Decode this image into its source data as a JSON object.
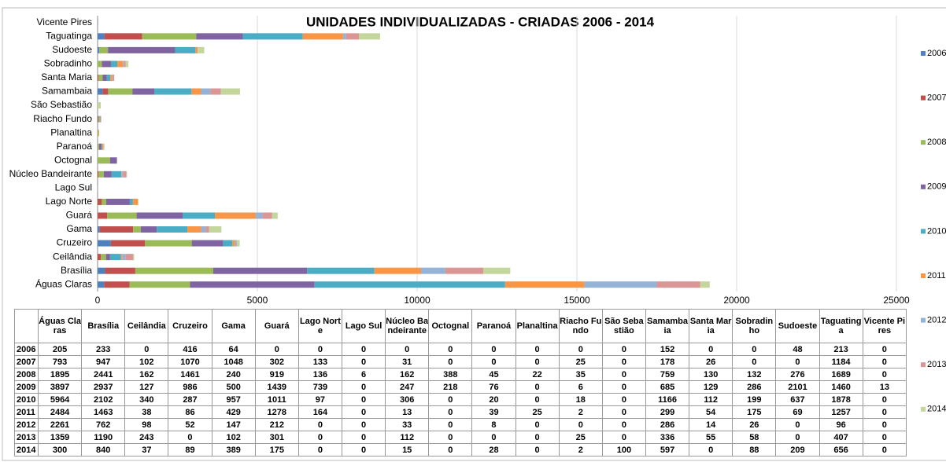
{
  "chart_data": {
    "type": "stacked_bar_horizontal",
    "title": "UNIDADES INDIVIDUALIZADAS - CRIADAS 2006 - 2014",
    "categories": [
      "Águas Claras",
      "Brasília",
      "Ceilândia",
      "Cruzeiro",
      "Gama",
      "Guará",
      "Lago Norte",
      "Lago Sul",
      "Núcleo Bandeirante",
      "Octognal",
      "Paranoá",
      "Planaltina",
      "Riacho Fundo",
      "São Sebastião",
      "Samambaia",
      "Santa Maria",
      "Sobradinho",
      "Sudoeste",
      "Taguatinga",
      "Vicente Pires"
    ],
    "xlim": [
      0,
      25000
    ],
    "xticks": [
      0,
      5000,
      10000,
      15000,
      20000,
      25000
    ],
    "grid": true,
    "legend": "right",
    "series": [
      {
        "name": "2006",
        "color": "#4f81bd",
        "values": [
          205,
          233,
          0,
          416,
          64,
          0,
          0,
          0,
          0,
          0,
          0,
          0,
          0,
          0,
          152,
          0,
          0,
          48,
          213,
          0
        ]
      },
      {
        "name": "2007",
        "color": "#c0504d",
        "values": [
          793,
          947,
          102,
          1070,
          1048,
          302,
          133,
          0,
          31,
          0,
          0,
          0,
          25,
          0,
          178,
          26,
          0,
          0,
          1184,
          0
        ]
      },
      {
        "name": "2008",
        "color": "#9bbb59",
        "values": [
          1895,
          2441,
          162,
          1461,
          240,
          919,
          136,
          6,
          162,
          388,
          45,
          22,
          35,
          0,
          759,
          130,
          132,
          276,
          1689,
          0
        ]
      },
      {
        "name": "2009",
        "color": "#8064a2",
        "values": [
          3897,
          2937,
          127,
          986,
          500,
          1439,
          739,
          0,
          247,
          218,
          76,
          0,
          6,
          0,
          685,
          129,
          286,
          2101,
          1460,
          13
        ]
      },
      {
        "name": "2010",
        "color": "#4bacc6",
        "values": [
          5964,
          2102,
          340,
          287,
          957,
          1011,
          97,
          0,
          306,
          0,
          20,
          0,
          18,
          0,
          1166,
          112,
          199,
          637,
          1878,
          0
        ]
      },
      {
        "name": "2011",
        "color": "#f79646",
        "values": [
          2484,
          1463,
          38,
          86,
          429,
          1278,
          164,
          0,
          13,
          0,
          39,
          25,
          2,
          0,
          299,
          54,
          175,
          69,
          1257,
          0
        ]
      },
      {
        "name": "2012",
        "color": "#95b3d7",
        "values": [
          2261,
          762,
          98,
          52,
          147,
          212,
          0,
          0,
          33,
          0,
          8,
          0,
          0,
          0,
          286,
          14,
          26,
          0,
          96,
          0
        ]
      },
      {
        "name": "2013",
        "color": "#d99694",
        "values": [
          1359,
          1190,
          243,
          0,
          102,
          301,
          0,
          0,
          112,
          0,
          0,
          0,
          25,
          0,
          336,
          55,
          58,
          0,
          407,
          0
        ]
      },
      {
        "name": "2014",
        "color": "#c3d69b",
        "values": [
          300,
          840,
          37,
          89,
          389,
          175,
          0,
          0,
          15,
          0,
          28,
          0,
          2,
          100,
          597,
          0,
          88,
          209,
          656,
          0
        ]
      }
    ]
  }
}
